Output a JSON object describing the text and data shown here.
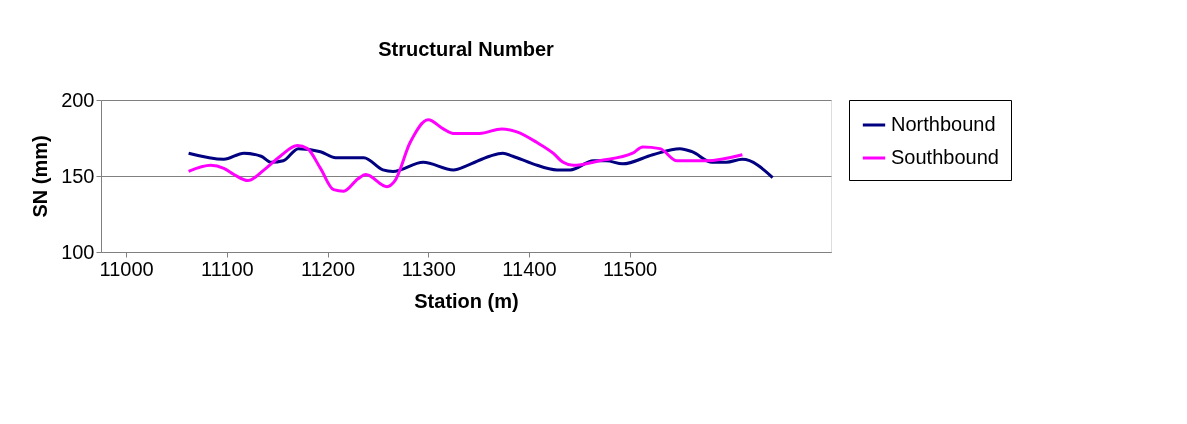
{
  "chart_data": {
    "type": "line",
    "title": "Structural Number",
    "xlabel": "Station (m)",
    "ylabel": "SN (mm)",
    "xlim": [
      10975,
      11700
    ],
    "xticks": [
      11000,
      11100,
      11200,
      11300,
      11400,
      11500
    ],
    "ylim": [
      100,
      200
    ],
    "yticks": [
      100,
      150,
      200
    ],
    "grid": "y",
    "legend": "right",
    "marker": "none",
    "line_style": "solid",
    "series": [
      {
        "name": "Northbound",
        "color": "#000080",
        "x": [
          11062,
          11097,
          11117,
          11134,
          11144,
          11156,
          11171,
          11193,
          11208,
          11236,
          11255,
          11265,
          11295,
          11325,
          11339,
          11361,
          11374,
          11384,
          11404,
          11428,
          11441,
          11464,
          11477,
          11493,
          11523,
          11550,
          11562,
          11582,
          11596,
          11612,
          11642
        ],
        "values": [
          165,
          161,
          165,
          163,
          159,
          160,
          168,
          166,
          162,
          162,
          154,
          153,
          159,
          154,
          157,
          163,
          165,
          163,
          158,
          154,
          154,
          160,
          160,
          158,
          164,
          168,
          166,
          159,
          159,
          161,
          149
        ]
      },
      {
        "name": "Southbound",
        "color": "#ff00ff",
        "x": [
          11062,
          11084,
          11097,
          11107,
          11121,
          11137,
          11153,
          11170,
          11180,
          11193,
          11206,
          11216,
          11230,
          11238,
          11259,
          11267,
          11282,
          11300,
          11315,
          11325,
          11351,
          11373,
          11388,
          11408,
          11424,
          11434,
          11444,
          11470,
          11503,
          11513,
          11530,
          11547,
          11576,
          11612
        ],
        "values": [
          153,
          157,
          155,
          151,
          147,
          154,
          163,
          170,
          168,
          155,
          141,
          140,
          148,
          151,
          143,
          147,
          172,
          187,
          181,
          178,
          178,
          181,
          179,
          172,
          165,
          159,
          157,
          160,
          165,
          169,
          168,
          160,
          160,
          164
        ]
      }
    ]
  }
}
